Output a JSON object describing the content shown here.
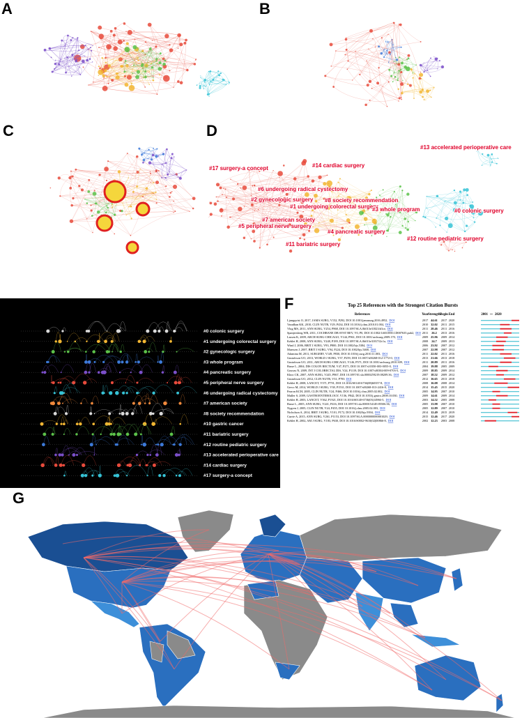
{
  "panel_labels": [
    "A",
    "B",
    "C",
    "D",
    "E",
    "F",
    "G"
  ],
  "d_clusters": [
    "#13 accelerated perioperative care",
    "#17 surgery-a concept",
    "#14 cardiac surgery",
    "#6 undergoing radical cystectomy",
    "#2 gynecologic surgery",
    "#8 society recommendation",
    "#1 undergoing colorectal surgery",
    "#3 whole program",
    "#0 colonic surgery",
    "#7 american society",
    "#5 peripheral nerve surgery",
    "#4 pancreatic surgery",
    "#11 bariatric surgery",
    "#12 routine pediatric surgery"
  ],
  "e_clusters": [
    "#0 colonic surgery",
    "#1 undergoing colorectal surgery",
    "#2 gynecologic surgery",
    "#3 whole program",
    "#4 pancreatic surgery",
    "#5 peripheral nerve surgery",
    "#6 undergoing radical cystectomy",
    "#7 american society",
    "#8 society recommendation",
    "#10 gastric cancer",
    "#11 bariatric surgery",
    "#12 routine pediatric surgery",
    "#13 accelerated perioperative care",
    "#14 cardiac surgery",
    "#17 surgery-a concept"
  ],
  "bursts": {
    "title": "Top 25 References with the Strongest Citation Bursts",
    "columns": [
      "References",
      "Year",
      "Strength",
      "Begin",
      "End"
    ],
    "period": [
      2001,
      2020
    ],
    "rows": [
      {
        "reference": "Ljungqvist O, 2017, JAMA SURG, V152, P292, DOI 10.1001/jamasurg.2016.4952,",
        "link": "DOI",
        "year": 2017,
        "strength": 44.61,
        "begin": 2017,
        "end": 2020
      },
      {
        "reference": "Varadhan KK, 2010, CLIN NUTR, V29, P434, DOI 10.1016/j.clnu.2010.01.004,",
        "link": "DOI",
        "year": 2010,
        "strength": 32.02,
        "begin": 2011,
        "end": 2015
      },
      {
        "reference": "Vlug MS, 2011, ANN SURG, V254, P868, DOI 10.1097/SLA.0b013e31821fd1ce,",
        "link": "DOI",
        "year": 2011,
        "strength": 28.46,
        "begin": 2011,
        "end": 2016
      },
      {
        "reference": "Spanjersberg WR, 2011, COCHRANE DB SYST REV, V0, P0, DOI 10.1002/14651858.CD007635.pub2,",
        "link": "DOI",
        "year": 2011,
        "strength": 26.2,
        "begin": 2013,
        "end": 2016
      },
      {
        "reference": "Lassen K, 2009, ARCH SURG-CHICAGO, V144, P961, DOI 10.1001/archsurg.2009.170,",
        "link": "DOI",
        "year": 2009,
        "strength": 25.96,
        "begin": 2009,
        "end": 2014
      },
      {
        "reference": "Kehlet H, 2008, ANN SURG, V248, P189, DOI 10.1097/SLA.0b013e31817f2c1a,",
        "link": "DOI",
        "year": 2008,
        "strength": 24.7,
        "begin": 2009,
        "end": 2013
      },
      {
        "reference": "Wind J, 2006, BRIT J SURG, V93, P800, DOI 10.1002/bjs.5384,",
        "link": "DOI",
        "year": 2006,
        "strength": 23.92,
        "begin": 2007,
        "end": 2012
      },
      {
        "reference": "Maessen J, 2007, BRIT J SURG, V94, P224, DOI 10.1002/bjs.5468,",
        "link": "DOI",
        "year": 2007,
        "strength": 22.98,
        "begin": 2007,
        "end": 2012
      },
      {
        "reference": "Adamina M, 2011, SURGERY, V149, P830, DOI 10.1016/j.surg.2010.11.003,",
        "link": "DOI",
        "year": 2011,
        "strength": 22.02,
        "begin": 2011,
        "end": 2016
      },
      {
        "reference": "Gustafsson UO, 2013, WORLD J SURG, V37, P259, DOI 10.1007/s00268-012-1772-0,",
        "link": "DOI",
        "year": 2013,
        "strength": 21.66,
        "begin": 2013,
        "end": 2018
      },
      {
        "reference": "Gustafsson UO, 2011, ARCH SURG-CHICAGO, V146, P571, DOI 10.1001/archsurg.2010.309,",
        "link": "DOI",
        "year": 2011,
        "strength": 20.89,
        "begin": 2011,
        "end": 2016
      },
      {
        "reference": "Basse L, 2004, DIS COLON RECTUM, V47, P271, DOI 10.1007/s10350-003-0055-0,",
        "link": "DOI",
        "year": 2004,
        "strength": 19.88,
        "begin": 2005,
        "end": 2009
      },
      {
        "reference": "Gouvas N, 2009, INT J COLORECTAL DIS, V24, P1119, DOI 10.1007/s00384-009-0703-5,",
        "link": "DOI",
        "year": 2009,
        "strength": 18.85,
        "begin": 2009,
        "end": 2014
      },
      {
        "reference": "Khoo CK, 2007, ANN SURG, V245, P867, DOI 10.1097/01.sla.0000259219.08209.36,",
        "link": "DOI",
        "year": 2007,
        "strength": 18.52,
        "begin": 2009,
        "end": 2012
      },
      {
        "reference": "Gustafsson UO, 2012, CLIN NUTR, V31, P783",
        "link": "DOI",
        "year": 2012,
        "strength": 16.65,
        "begin": 2013,
        "end": 2018
      },
      {
        "reference": "Kehlet H, 2008, LANCET, V371, P791, DOI 10.1016/S0140-6736(08)60357-8,",
        "link": "DOI",
        "year": 2008,
        "strength": 16.08,
        "begin": 2008,
        "end": 2014
      },
      {
        "reference": "Greco M, 2014, WORLD J SURG, V38, P1531, DOI 10.1007/s00268-013-2416-8,",
        "link": "DOI",
        "year": 2014,
        "strength": 15.45,
        "begin": 2015,
        "end": 2020
      },
      {
        "reference": "Fearon KCH, 2005, CLIN NUTR, V24, P466, DOI 10.1016/j.clnu.2005.02.002,",
        "link": "DOI",
        "year": 2005,
        "strength": 14.95,
        "begin": 2007,
        "end": 2010
      },
      {
        "reference": "Muller S, 2009, GASTROENTEROLOGY, V136, P842, DOI 10.1053/j.gastro.2008.10.030,",
        "link": "DOI",
        "year": 2009,
        "strength": 14.61,
        "begin": 2009,
        "end": 2014
      },
      {
        "reference": "Kehlet H, 2003, LANCET, V362, P1921, DOI 10.1016/S0140-6736(03)14966-5,",
        "link": "DOI",
        "year": 2003,
        "strength": 14.52,
        "begin": 2005,
        "end": 2008
      },
      {
        "reference": "Basse L, 2005, ANN SURG, V241, P416, DOI 10.1097/01.sla.0000154149.85506.36,",
        "link": "DOI",
        "year": 2005,
        "strength": 13.98,
        "begin": 2007,
        "end": 2010
      },
      {
        "reference": "Nygren J, 2005, CLIN NUTR, V24, P455, DOI 10.1016/j.clnu.2005.02.003,",
        "link": "DOI",
        "year": 2005,
        "strength": 12.89,
        "begin": 2007,
        "end": 2010
      },
      {
        "reference": "Nicholson A, 2014, BRIT J SURG, V101, P172, DOI 10.1002/bjs.9394,",
        "link": "DOI",
        "year": 2014,
        "strength": 12.49,
        "begin": 2015,
        "end": 2019
      },
      {
        "reference": "Currie A, 2015, ANN SURG, V261, P1153, DOI 10.1097/SLA.0000000000001029,",
        "link": "DOI",
        "year": 2015,
        "strength": 12.46,
        "begin": 2017,
        "end": 2020
      },
      {
        "reference": "Kehlet H, 2002, AM J SURG, V183, P630, DOI 10.1016/S0002-9610(02)00866-8,",
        "link": "DOI",
        "year": 2002,
        "strength": 12.23,
        "begin": 2003,
        "end": 2008
      }
    ]
  }
}
